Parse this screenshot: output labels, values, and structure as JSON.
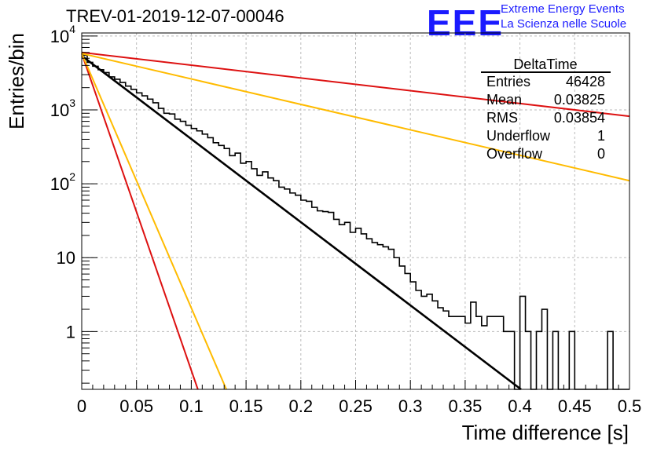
{
  "header": {
    "title": "TREV-01-2019-12-07-00046",
    "logo_text": "EEE",
    "org_line1": "Extreme Energy Events",
    "org_line2": "La Scienza nelle Scuole"
  },
  "stats": {
    "name": "DeltaTime",
    "rows": [
      {
        "label": "Entries",
        "value": "46428"
      },
      {
        "label": "Mean",
        "value": "0.03825"
      },
      {
        "label": "RMS",
        "value": "0.03854"
      },
      {
        "label": "Underflow",
        "value": "1"
      },
      {
        "label": "Overflow",
        "value": "0"
      }
    ]
  },
  "colors": {
    "hist": "#000000",
    "fit": "#000000",
    "red": "#dd1111",
    "yellow": "#ffbb00",
    "grid": "#bbbbbb"
  },
  "chart_data": {
    "type": "line",
    "xlabel": "Time difference [s]",
    "ylabel": "Entries/bin",
    "xlim": [
      0,
      0.5
    ],
    "ylim": [
      0.165,
      11000
    ],
    "yscale": "log",
    "grid": true,
    "xticks": [
      0,
      0.05,
      0.1,
      0.15,
      0.2,
      0.25,
      0.3,
      0.35,
      0.4,
      0.45,
      0.5
    ],
    "xtick_labels": [
      "0",
      "0.05",
      "0.1",
      "0.15",
      "0.2",
      "0.25",
      "0.3",
      "0.35",
      "0.4",
      "0.45",
      "0.5"
    ],
    "yticks": [
      1,
      10,
      100,
      1000,
      10000
    ],
    "ytick_labels": [
      {
        "base": "1",
        "exp": ""
      },
      {
        "base": "10",
        "exp": ""
      },
      {
        "base": "10",
        "exp": "2"
      },
      {
        "base": "10",
        "exp": "3"
      },
      {
        "base": "10",
        "exp": "4"
      }
    ],
    "histogram": {
      "bin_width": 0.005,
      "values": [
        5500,
        4400,
        3900,
        3500,
        3200,
        2800,
        2600,
        2350,
        2100,
        1900,
        1700,
        1550,
        1400,
        1250,
        1050,
        900,
        880,
        750,
        700,
        620,
        560,
        520,
        470,
        420,
        360,
        330,
        300,
        240,
        260,
        190,
        200,
        160,
        130,
        145,
        120,
        110,
        90,
        85,
        75,
        70,
        60,
        58,
        48,
        43,
        42,
        41,
        33,
        28,
        30,
        22,
        25,
        21,
        18,
        16,
        15,
        14,
        13,
        10,
        7.7,
        6.1,
        4.7,
        3.6,
        3.0,
        3.2,
        2.6,
        2.1,
        1.9,
        1.6,
        1.6,
        1.6,
        1.3,
        2.5,
        1.6,
        1.2,
        1.6,
        1.6,
        1.6,
        1.0,
        1.0,
        0,
        3.0,
        1.0,
        0,
        1.0,
        2.0,
        0,
        1.0,
        0,
        0,
        1.0,
        0,
        0,
        0,
        0,
        0,
        0,
        1.0,
        0,
        0,
        0,
        0,
        0,
        0,
        0,
        0,
        0,
        0,
        0,
        0,
        0,
        0,
        0,
        0,
        0,
        0,
        0,
        0,
        0,
        0,
        0,
        0,
        0,
        0,
        0,
        0,
        0,
        0,
        0,
        0,
        0,
        0,
        0,
        0,
        0,
        0,
        0,
        0,
        0,
        0,
        0,
        0,
        0,
        0,
        0,
        0,
        0
      ]
    },
    "series": [
      {
        "x": [
          0,
          0.401
        ],
        "values": [
          5400,
          0.165
        ]
      },
      {
        "x": [
          0,
          0.5
        ],
        "values": [
          6000,
          820
        ]
      },
      {
        "x": [
          0,
          0.5
        ],
        "values": [
          5800,
          110
        ]
      },
      {
        "x": [
          0,
          0.106
        ],
        "values": [
          5800,
          0.165
        ]
      },
      {
        "x": [
          0,
          0.132
        ],
        "values": [
          5800,
          0.165
        ]
      }
    ]
  }
}
